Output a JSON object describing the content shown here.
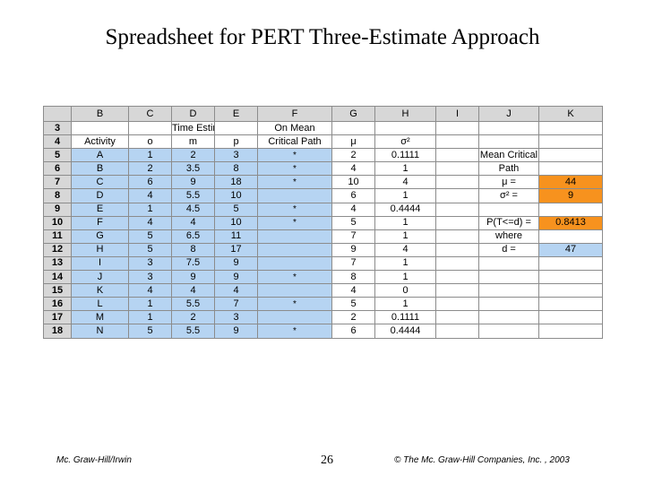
{
  "slide": {
    "title": "Spreadsheet for PERT Three-Estimate Approach"
  },
  "sheet": {
    "columns": [
      "",
      "B",
      "C",
      "D",
      "E",
      "F",
      "G",
      "H",
      "I",
      "J",
      "K"
    ],
    "rows": [
      {
        "n": "3",
        "B": "",
        "C": "",
        "D": "Time Estimates",
        "E": "",
        "F": "On Mean",
        "G": "",
        "H": "",
        "I": "",
        "J": "",
        "K": ""
      },
      {
        "n": "4",
        "B": "Activity",
        "C": "o",
        "D": "m",
        "E": "p",
        "F": "Critical Path",
        "G": "μ",
        "H": "σ²",
        "I": "",
        "J": "",
        "K": ""
      },
      {
        "n": "5",
        "B": "A",
        "C": "1",
        "D": "2",
        "E": "3",
        "F": "*",
        "G": "2",
        "H": "0.1111",
        "I": "",
        "J": "Mean Critical",
        "K": ""
      },
      {
        "n": "6",
        "B": "B",
        "C": "2",
        "D": "3.5",
        "E": "8",
        "F": "*",
        "G": "4",
        "H": "1",
        "I": "",
        "J": "Path",
        "K": ""
      },
      {
        "n": "7",
        "B": "C",
        "C": "6",
        "D": "9",
        "E": "18",
        "F": "*",
        "G": "10",
        "H": "4",
        "I": "",
        "J": "μ =",
        "K": "44"
      },
      {
        "n": "8",
        "B": "D",
        "C": "4",
        "D": "5.5",
        "E": "10",
        "F": "",
        "G": "6",
        "H": "1",
        "I": "",
        "J": "σ² =",
        "K": "9"
      },
      {
        "n": "9",
        "B": "E",
        "C": "1",
        "D": "4.5",
        "E": "5",
        "F": "*",
        "G": "4",
        "H": "0.4444",
        "I": "",
        "J": "",
        "K": ""
      },
      {
        "n": "10",
        "B": "F",
        "C": "4",
        "D": "4",
        "E": "10",
        "F": "*",
        "G": "5",
        "H": "1",
        "I": "",
        "J": "P(T<=d) =",
        "K": "0.8413"
      },
      {
        "n": "11",
        "B": "G",
        "C": "5",
        "D": "6.5",
        "E": "11",
        "F": "",
        "G": "7",
        "H": "1",
        "I": "",
        "J": "where",
        "K": ""
      },
      {
        "n": "12",
        "B": "H",
        "C": "5",
        "D": "8",
        "E": "17",
        "F": "",
        "G": "9",
        "H": "4",
        "I": "",
        "J": "d =",
        "K": "47"
      },
      {
        "n": "13",
        "B": "I",
        "C": "3",
        "D": "7.5",
        "E": "9",
        "F": "",
        "G": "7",
        "H": "1",
        "I": "",
        "J": "",
        "K": ""
      },
      {
        "n": "14",
        "B": "J",
        "C": "3",
        "D": "9",
        "E": "9",
        "F": "*",
        "G": "8",
        "H": "1",
        "I": "",
        "J": "",
        "K": ""
      },
      {
        "n": "15",
        "B": "K",
        "C": "4",
        "D": "4",
        "E": "4",
        "F": "",
        "G": "4",
        "H": "0",
        "I": "",
        "J": "",
        "K": ""
      },
      {
        "n": "16",
        "B": "L",
        "C": "1",
        "D": "5.5",
        "E": "7",
        "F": "*",
        "G": "5",
        "H": "1",
        "I": "",
        "J": "",
        "K": ""
      },
      {
        "n": "17",
        "B": "M",
        "C": "1",
        "D": "2",
        "E": "3",
        "F": "",
        "G": "2",
        "H": "0.1111",
        "I": "",
        "J": "",
        "K": ""
      },
      {
        "n": "18",
        "B": "N",
        "C": "5",
        "D": "5.5",
        "E": "9",
        "F": "*",
        "G": "6",
        "H": "0.4444",
        "I": "",
        "J": "",
        "K": ""
      }
    ]
  },
  "footer": {
    "left": "Mc. Graw-Hill/Irwin",
    "page": "26",
    "right": "© The Mc. Graw-Hill Companies, Inc. , 2003"
  },
  "colors": {
    "input_blue": "#b6d4f2",
    "result_orange": "#f7921e",
    "header_gray": "#d7d7d7"
  }
}
